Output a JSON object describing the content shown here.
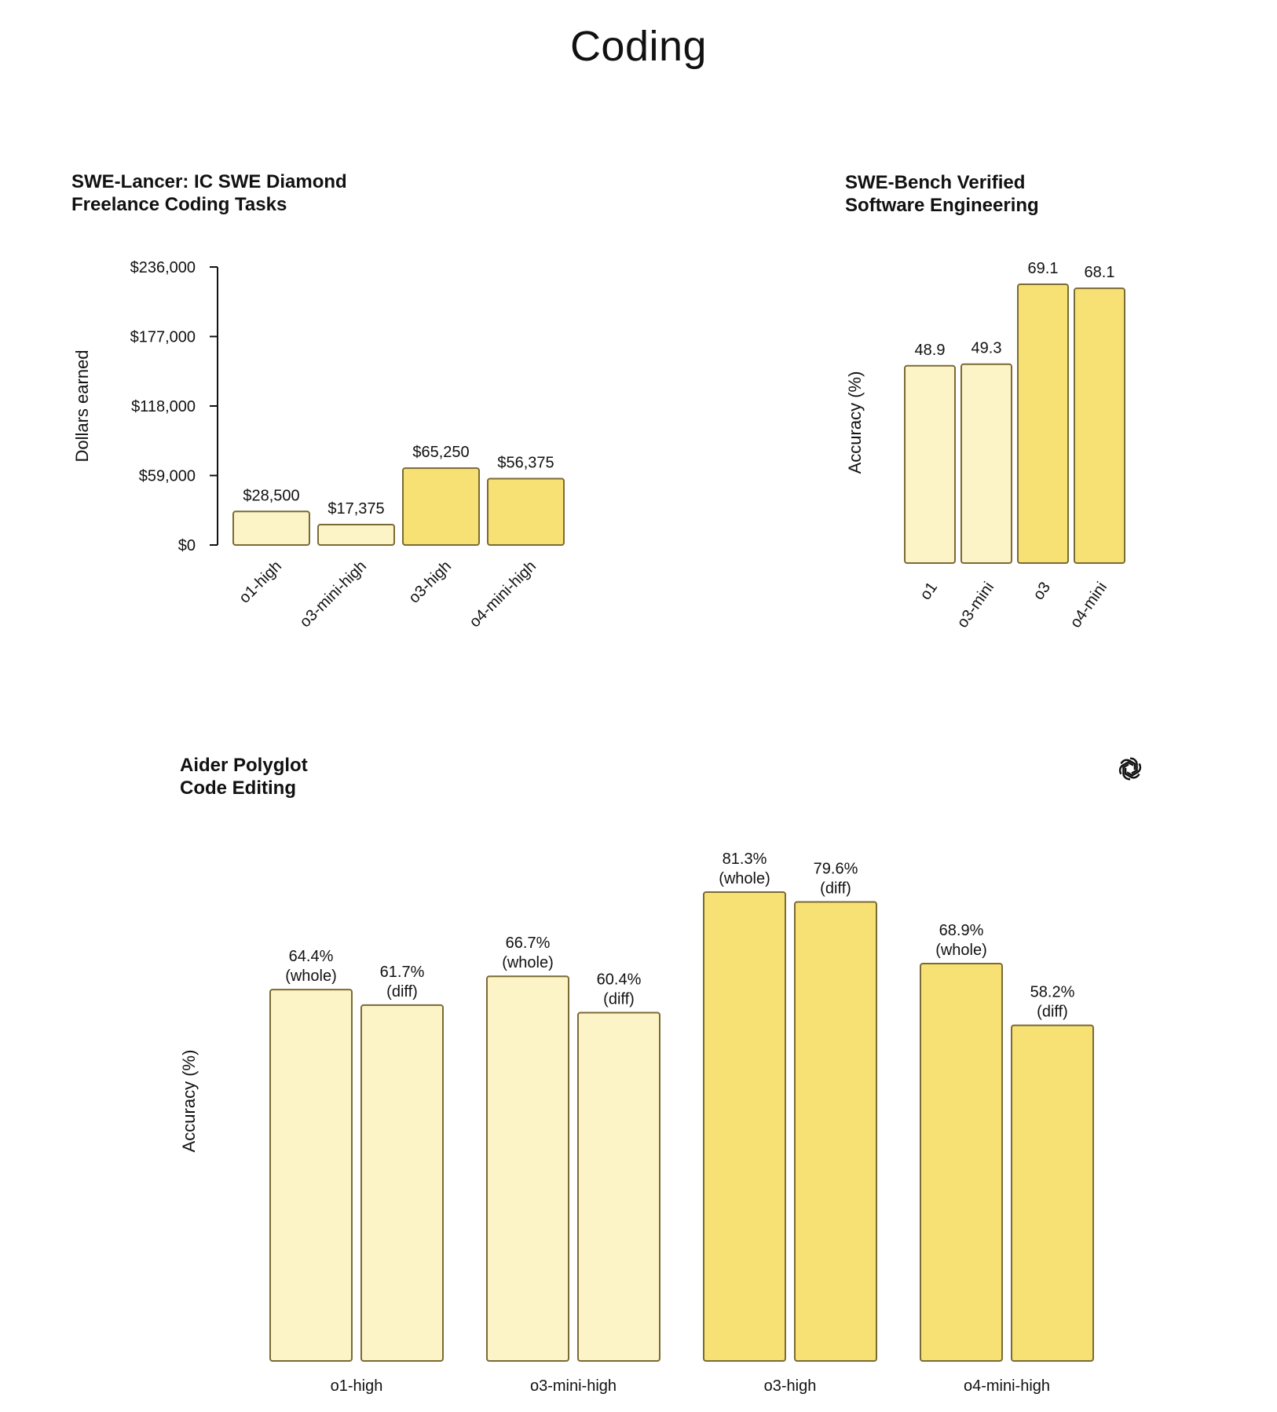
{
  "page": {
    "title": "Coding"
  },
  "colors": {
    "light": "#fcf3c7",
    "dark": "#f8e174",
    "stroke": "#7a6a34",
    "text": "#111111"
  },
  "logo": {
    "icon": "openai-logo-icon"
  },
  "chart_data": [
    {
      "id": "swe-lancer",
      "type": "bar",
      "title": [
        "SWE-Lancer: IC SWE Diamond",
        "Freelance Coding Tasks"
      ],
      "xlabel": "",
      "ylabel": "Dollars earned",
      "ylim": [
        0,
        236000
      ],
      "yticks": [
        0,
        59000,
        118000,
        177000,
        236000
      ],
      "ytick_labels": [
        "$0",
        "$59,000",
        "$118,000",
        "$177,000",
        "$236,000"
      ],
      "categories": [
        "o1-high",
        "o3-mini-high",
        "o3-high",
        "o4-mini-high"
      ],
      "values": [
        28500,
        17375,
        65250,
        56375
      ],
      "value_labels": [
        "$28,500",
        "$17,375",
        "$65,250",
        "$56,375"
      ],
      "shade": [
        "light",
        "light",
        "dark",
        "dark"
      ],
      "grid": false
    },
    {
      "id": "swe-bench",
      "type": "bar",
      "title": [
        "SWE-Bench Verified",
        "Software Engineering"
      ],
      "xlabel": "",
      "ylabel": "Accuracy (%)",
      "ylim": [
        0,
        69.1
      ],
      "categories": [
        "o1",
        "o3-mini",
        "o3",
        "o4-mini"
      ],
      "values": [
        48.9,
        49.3,
        69.1,
        68.1
      ],
      "value_labels": [
        "48.9",
        "49.3",
        "69.1",
        "68.1"
      ],
      "shade": [
        "light",
        "light",
        "dark",
        "dark"
      ],
      "grid": false
    },
    {
      "id": "aider-polyglot",
      "type": "bar",
      "title": [
        "Aider Polyglot",
        "Code Editing"
      ],
      "xlabel": "",
      "ylabel": "Accuracy (%)",
      "ylim": [
        0,
        81.3
      ],
      "categories": [
        "o1-high",
        "o3-mini-high",
        "o3-high",
        "o4-mini-high"
      ],
      "series": [
        {
          "name": "whole",
          "values": [
            64.4,
            66.7,
            81.3,
            68.9
          ],
          "value_labels": [
            "64.4%",
            "66.7%",
            "81.3%",
            "68.9%"
          ],
          "suffix": "(whole)"
        },
        {
          "name": "diff",
          "values": [
            61.7,
            60.4,
            79.6,
            58.2
          ],
          "value_labels": [
            "61.7%",
            "60.4%",
            "79.6%",
            "58.2%"
          ],
          "suffix": "(diff)"
        }
      ],
      "shade": [
        "light",
        "light",
        "dark",
        "dark"
      ],
      "grid": false
    }
  ]
}
